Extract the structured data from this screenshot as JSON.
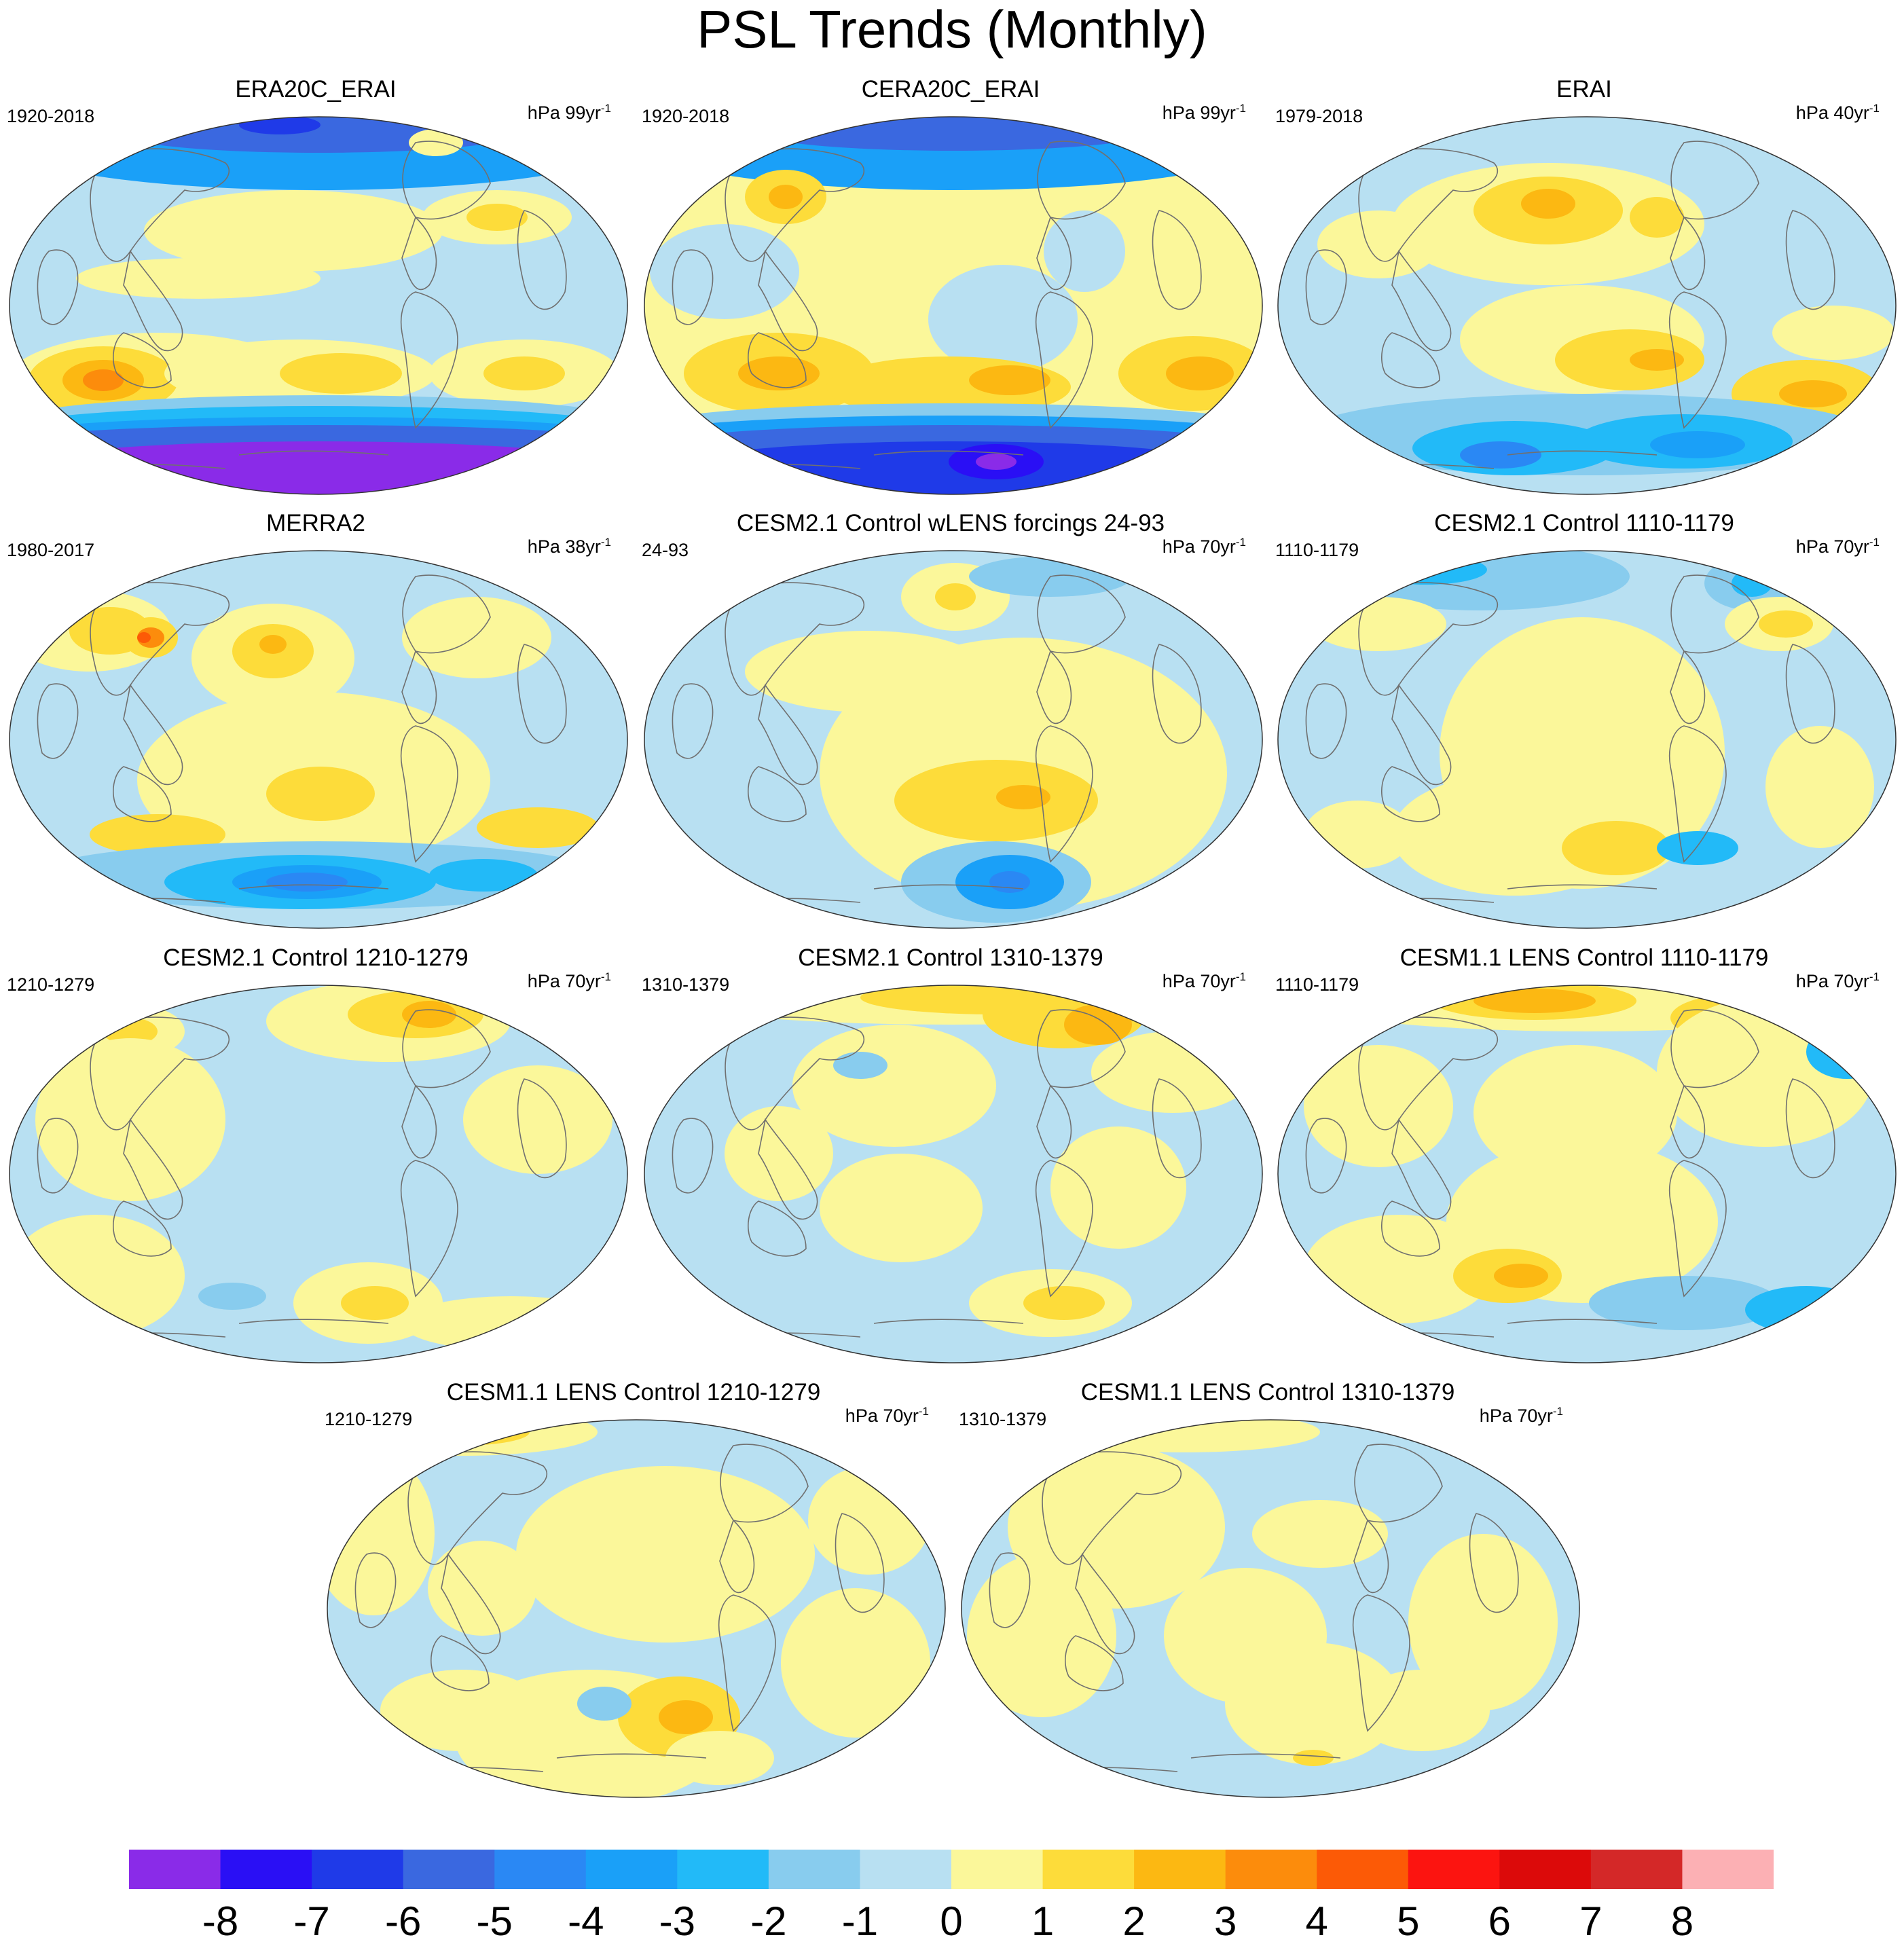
{
  "title": "PSL Trends (Monthly)",
  "panels": [
    {
      "title": "ERA20C_ERAI",
      "period": "1920-2018",
      "units": "hPa 99yr",
      "units_exp": "-1",
      "pattern": "era20c"
    },
    {
      "title": "CERA20C_ERAI",
      "period": "1920-2018",
      "units": "hPa 99yr",
      "units_exp": "-1",
      "pattern": "cera20c"
    },
    {
      "title": "ERAI",
      "period": "1979-2018",
      "units": "hPa 40yr",
      "units_exp": "-1",
      "pattern": "erai"
    },
    {
      "title": "MERRA2",
      "period": "1980-2017",
      "units": "hPa 38yr",
      "units_exp": "-1",
      "pattern": "merra2"
    },
    {
      "title": "CESM2.1 Control wLENS forcings 24-93",
      "period": "24-93",
      "units": "hPa 70yr",
      "units_exp": "-1",
      "pattern": "cesm_wlens"
    },
    {
      "title": "CESM2.1 Control 1110-1179",
      "period": "1110-1179",
      "units": "hPa 70yr",
      "units_exp": "-1",
      "pattern": "cesm2_1110"
    },
    {
      "title": "CESM2.1 Control 1210-1279",
      "period": "1210-1279",
      "units": "hPa 70yr",
      "units_exp": "-1",
      "pattern": "cesm2_1210"
    },
    {
      "title": "CESM2.1 Control 1310-1379",
      "period": "1310-1379",
      "units": "hPa 70yr",
      "units_exp": "-1",
      "pattern": "cesm2_1310"
    },
    {
      "title": "CESM1.1 LENS Control 1110-1179",
      "period": "1110-1179",
      "units": "hPa 70yr",
      "units_exp": "-1",
      "pattern": "cesm1_1110"
    },
    {
      "title": "CESM1.1 LENS Control 1210-1279",
      "period": "1210-1279",
      "units": "hPa 70yr",
      "units_exp": "-1",
      "pattern": "cesm1_1210"
    },
    {
      "title": "CESM1.1 LENS Control 1310-1379",
      "period": "1310-1379",
      "units": "hPa 70yr",
      "units_exp": "-1",
      "pattern": "cesm1_1310"
    }
  ],
  "colorbar": {
    "labels": [
      "-8",
      "-7",
      "-6",
      "-5",
      "-4",
      "-3",
      "-2",
      "-1",
      "0",
      "1",
      "2",
      "3",
      "4",
      "5",
      "6",
      "7",
      "8"
    ],
    "colors": [
      "#8a2be8",
      "#2a0ff5",
      "#1f3ae8",
      "#3a68e0",
      "#2a88f4",
      "#1aa0f8",
      "#22baf8",
      "#88ccee",
      "#b8e0f2",
      "#fbf79a",
      "#fddc3a",
      "#fcb812",
      "#fc8c0c",
      "#fc5a06",
      "#fc1410",
      "#dc0a0a",
      "#d42828",
      "#fcb0b4"
    ]
  }
}
